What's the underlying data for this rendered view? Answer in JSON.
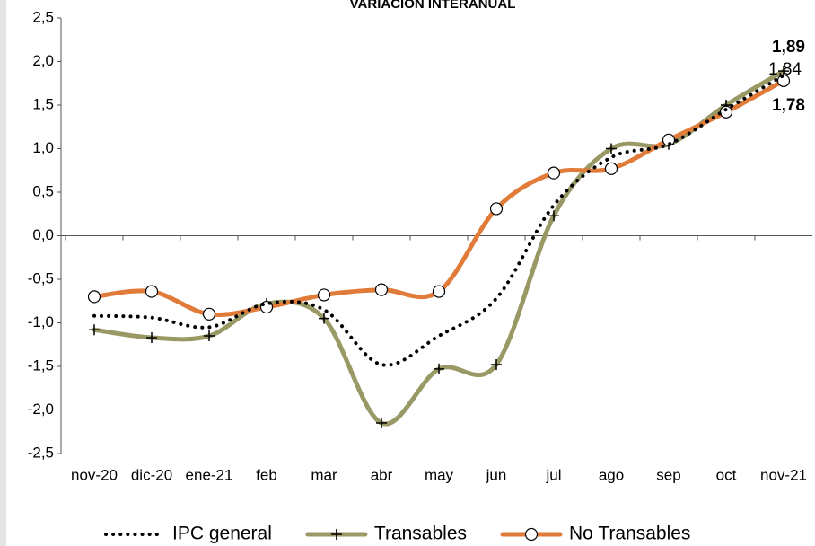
{
  "chart_data": {
    "type": "line",
    "title": "VARIACIÓN INTERANUAL",
    "categories": [
      "nov-20",
      "dic-20",
      "ene-21",
      "feb",
      "mar",
      "abr",
      "may",
      "jun",
      "jul",
      "ago",
      "sep",
      "oct",
      "nov-21"
    ],
    "series": [
      {
        "name": "IPC general",
        "color": "#000000",
        "marker": "none",
        "dash": "dotted",
        "values": [
          -0.92,
          -0.94,
          -1.05,
          -0.78,
          -0.85,
          -1.48,
          -1.15,
          -0.72,
          0.35,
          0.9,
          1.05,
          1.45,
          1.84
        ],
        "value_labels": [
          null,
          null,
          null,
          null,
          null,
          null,
          null,
          null,
          null,
          null,
          null,
          null,
          "1,84"
        ]
      },
      {
        "name": "Transables",
        "color": "#999966",
        "marker": "plus",
        "dash": "solid",
        "values": [
          -1.08,
          -1.17,
          -1.15,
          -0.78,
          -0.95,
          -2.15,
          -1.53,
          -1.48,
          0.23,
          1.0,
          1.05,
          1.5,
          1.89
        ],
        "value_labels": [
          null,
          null,
          null,
          null,
          null,
          null,
          null,
          null,
          null,
          null,
          null,
          null,
          "1,89"
        ]
      },
      {
        "name": "No Transables",
        "color": "#e07b39",
        "marker": "circle",
        "dash": "solid",
        "values": [
          -0.7,
          -0.64,
          -0.9,
          -0.82,
          -0.68,
          -0.62,
          -0.64,
          0.31,
          0.72,
          0.77,
          1.1,
          1.42,
          1.78
        ],
        "value_labels": [
          null,
          null,
          null,
          null,
          null,
          null,
          null,
          null,
          null,
          null,
          null,
          null,
          "1,78"
        ]
      }
    ],
    "ylim": [
      -2.5,
      2.5
    ],
    "yticks": [
      {
        "value": -2.5,
        "label": "-2,5"
      },
      {
        "value": -2,
        "label": "-2,0"
      },
      {
        "value": -1.5,
        "label": "-1,5"
      },
      {
        "value": -1,
        "label": "-1,0"
      },
      {
        "value": -0.5,
        "label": "-0,5"
      },
      {
        "value": 0,
        "label": "0,0"
      },
      {
        "value": 0.5,
        "label": "0,5"
      },
      {
        "value": 1,
        "label": "1,0"
      },
      {
        "value": 1.5,
        "label": "1,5"
      },
      {
        "value": 2,
        "label": "2,0"
      },
      {
        "value": 2.5,
        "label": "2,5"
      }
    ],
    "grid": false,
    "legend": "bottom"
  }
}
